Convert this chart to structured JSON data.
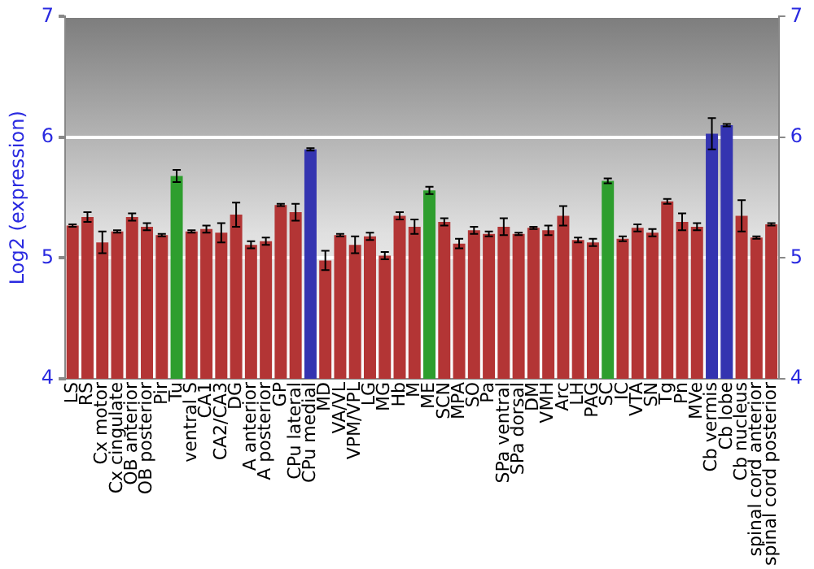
{
  "chart_data": {
    "type": "bar",
    "ylabel": "Log2 (expression)",
    "categories": [
      "LS",
      "RS",
      "Cx motor",
      "Cx cingulate",
      "OB anterior",
      "OB posterior",
      "Pir",
      "Tu",
      "ventral S",
      "CA1",
      "CA2/CA3",
      "DG",
      "A anterior",
      "A posterior",
      "GP",
      "CPu lateral",
      "CPu medial",
      "MD",
      "VA/VL",
      "VPM/VPL",
      "LG",
      "MG",
      "Hb",
      "M",
      "ME",
      "SCN",
      "MPA",
      "SO",
      "Pa",
      "SPa ventral",
      "SPa dorsal",
      "DM",
      "VMH",
      "Arc",
      "LH",
      "PAG",
      "SC",
      "IC",
      "VTA",
      "SN",
      "Tg",
      "Pn",
      "MVe",
      "Cb vermis",
      "Cb lobe",
      "Cb nucleus",
      "spinal cord anterior",
      "spinal cord posterior"
    ],
    "values": [
      5.27,
      5.34,
      5.13,
      5.22,
      5.34,
      5.26,
      5.19,
      5.68,
      5.22,
      5.24,
      5.21,
      5.36,
      5.11,
      5.14,
      5.44,
      5.38,
      5.9,
      4.98,
      5.19,
      5.11,
      5.18,
      5.02,
      5.35,
      5.26,
      5.56,
      5.3,
      5.12,
      5.23,
      5.2,
      5.26,
      5.2,
      5.25,
      5.23,
      5.35,
      5.15,
      5.13,
      5.64,
      5.16,
      5.25,
      5.21,
      5.47,
      5.3,
      5.26,
      6.03,
      6.1,
      5.35,
      5.17,
      5.28
    ],
    "errors": [
      0.01,
      0.04,
      0.09,
      0.01,
      0.03,
      0.03,
      0.01,
      0.05,
      0.01,
      0.03,
      0.08,
      0.1,
      0.03,
      0.03,
      0.01,
      0.07,
      0.01,
      0.08,
      0.01,
      0.07,
      0.03,
      0.03,
      0.03,
      0.06,
      0.03,
      0.03,
      0.04,
      0.03,
      0.02,
      0.07,
      0.01,
      0.01,
      0.04,
      0.08,
      0.02,
      0.03,
      0.02,
      0.02,
      0.03,
      0.03,
      0.02,
      0.07,
      0.03,
      0.13,
      0.01,
      0.13,
      0.01,
      0.01
    ],
    "colors": [
      "#b33535",
      "#b33535",
      "#b33535",
      "#b33535",
      "#b33535",
      "#b33535",
      "#b33535",
      "#2e9e2e",
      "#b33535",
      "#b33535",
      "#b33535",
      "#b33535",
      "#b33535",
      "#b33535",
      "#b33535",
      "#b33535",
      "#3434b0",
      "#b33535",
      "#b33535",
      "#b33535",
      "#b33535",
      "#b33535",
      "#b33535",
      "#b33535",
      "#2e9e2e",
      "#b33535",
      "#b33535",
      "#b33535",
      "#b33535",
      "#b33535",
      "#b33535",
      "#b33535",
      "#b33535",
      "#b33535",
      "#b33535",
      "#b33535",
      "#2e9e2e",
      "#b33535",
      "#b33535",
      "#b33535",
      "#b33535",
      "#b33535",
      "#b33535",
      "#3434b0",
      "#3434b0",
      "#b33535",
      "#b33535",
      "#b33535"
    ],
    "ylim": [
      4,
      7
    ],
    "yticks": [
      4,
      5,
      6,
      7
    ],
    "y2lim": [
      4,
      7
    ],
    "y2ticks": [
      4,
      5,
      6,
      7
    ],
    "grid": "y",
    "legend": false
  }
}
